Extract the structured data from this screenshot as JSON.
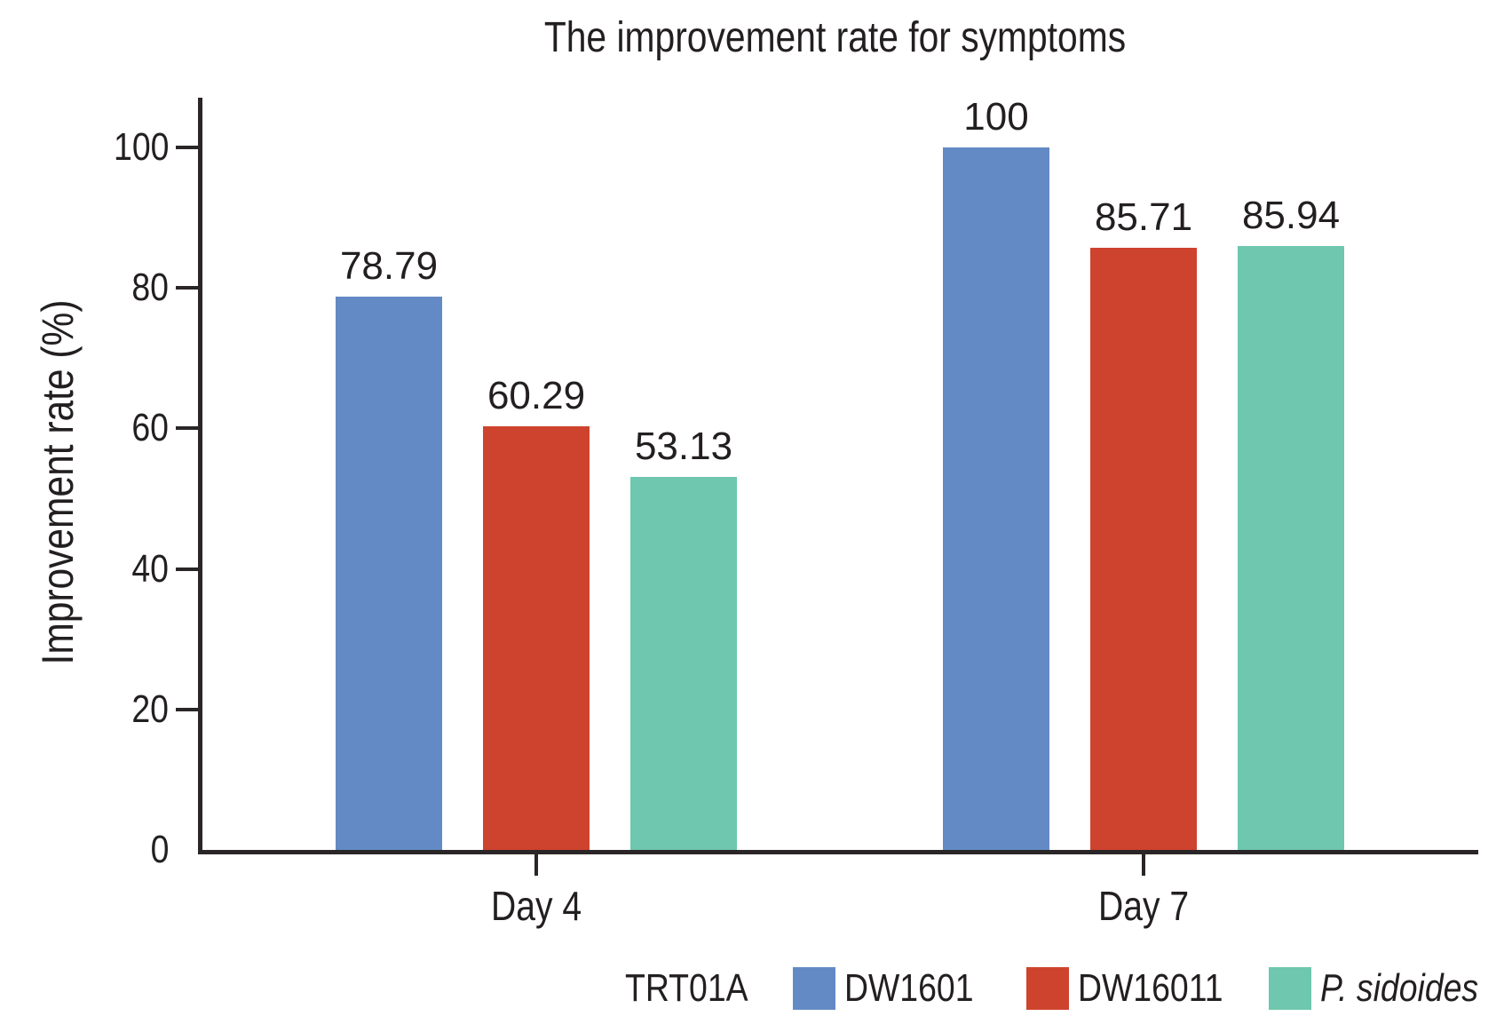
{
  "title": "The improvement rate for symptoms",
  "chart_data": {
    "type": "bar",
    "title": "The improvement rate for symptoms",
    "categories": [
      "Day 4",
      "Day 7"
    ],
    "series": [
      {
        "name": "DW1601",
        "color": "#638AC4",
        "italic": false,
        "values": [
          78.79,
          100
        ]
      },
      {
        "name": "DW16011",
        "color": "#CE432E",
        "italic": false,
        "values": [
          60.29,
          85.71
        ]
      },
      {
        "name": "P. sidoides",
        "color": "#6EC7AE",
        "italic": true,
        "values": [
          53.13,
          85.94
        ]
      }
    ],
    "value_labels": [
      [
        "78.79",
        "100"
      ],
      [
        "60.29",
        "85.71"
      ],
      [
        "53.13",
        "85.94"
      ]
    ],
    "xlabel": "",
    "ylabel": "Improvement rate (%)",
    "ylim": [
      0,
      100
    ],
    "yticks": [
      0,
      20,
      40,
      60,
      80,
      100
    ],
    "grid": false,
    "legend": {
      "title": "TRT01A",
      "position": "bottom-right"
    }
  },
  "colors": {
    "text": "#231F20",
    "axis": "#2A2526",
    "background": "#FFFFFF"
  }
}
